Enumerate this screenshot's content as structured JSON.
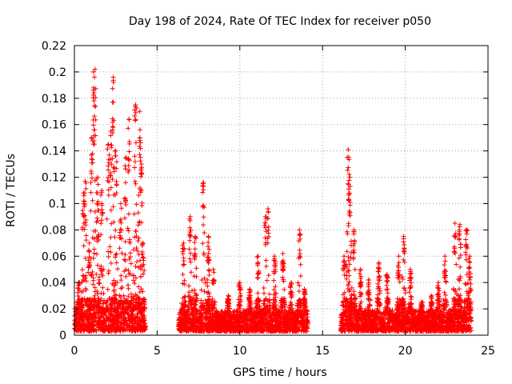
{
  "chart_data": {
    "type": "scatter",
    "title": "Day 198 of 2024, Rate Of TEC Index for receiver p050",
    "xlabel": "GPS time / hours",
    "ylabel": "ROTI / TECUs",
    "xlim": [
      0,
      25
    ],
    "ylim": [
      0,
      0.22
    ],
    "xticks": [
      0,
      5,
      10,
      15,
      20,
      25
    ],
    "xtick_labels": [
      "0",
      "5",
      "10",
      "15",
      "20",
      "25"
    ],
    "yticks": [
      0,
      0.02,
      0.04,
      0.06,
      0.08,
      0.1,
      0.12,
      0.14,
      0.16,
      0.18,
      0.2,
      0.22
    ],
    "ytick_labels": [
      "0",
      "0.02",
      "0.04",
      "0.06",
      "0.08",
      "0.1",
      "0.12",
      "0.14",
      "0.16",
      "0.18",
      "0.2",
      "0.22"
    ],
    "grid": true,
    "marker": "+",
    "color": "#ff0000",
    "segments": [
      {
        "start": 0.0,
        "end": 4.3,
        "baseline": 0.02,
        "spikes": [
          {
            "x": 0.25,
            "y": 0.04
          },
          {
            "x": 0.55,
            "y": 0.108
          },
          {
            "x": 0.65,
            "y": 0.117
          },
          {
            "x": 0.9,
            "y": 0.07
          },
          {
            "x": 1.05,
            "y": 0.15
          },
          {
            "x": 1.15,
            "y": 0.2
          },
          {
            "x": 1.25,
            "y": 0.202
          },
          {
            "x": 1.4,
            "y": 0.12
          },
          {
            "x": 1.65,
            "y": 0.11
          },
          {
            "x": 2.05,
            "y": 0.145
          },
          {
            "x": 2.2,
            "y": 0.155
          },
          {
            "x": 2.35,
            "y": 0.196
          },
          {
            "x": 2.5,
            "y": 0.14
          },
          {
            "x": 2.8,
            "y": 0.1
          },
          {
            "x": 3.1,
            "y": 0.135
          },
          {
            "x": 3.3,
            "y": 0.164
          },
          {
            "x": 3.7,
            "y": 0.175
          },
          {
            "x": 3.95,
            "y": 0.17
          },
          {
            "x": 4.05,
            "y": 0.13
          },
          {
            "x": 4.15,
            "y": 0.07
          }
        ]
      },
      {
        "start": 6.3,
        "end": 14.1,
        "baseline": 0.016,
        "spikes": [
          {
            "x": 6.6,
            "y": 0.07
          },
          {
            "x": 7.0,
            "y": 0.09
          },
          {
            "x": 7.3,
            "y": 0.075
          },
          {
            "x": 7.8,
            "y": 0.116
          },
          {
            "x": 8.1,
            "y": 0.075
          },
          {
            "x": 8.4,
            "y": 0.05
          },
          {
            "x": 9.3,
            "y": 0.03
          },
          {
            "x": 10.0,
            "y": 0.04
          },
          {
            "x": 10.6,
            "y": 0.035
          },
          {
            "x": 11.1,
            "y": 0.06
          },
          {
            "x": 11.55,
            "y": 0.09
          },
          {
            "x": 11.7,
            "y": 0.096
          },
          {
            "x": 12.1,
            "y": 0.06
          },
          {
            "x": 12.6,
            "y": 0.062
          },
          {
            "x": 13.1,
            "y": 0.04
          },
          {
            "x": 13.6,
            "y": 0.08
          },
          {
            "x": 13.9,
            "y": 0.035
          }
        ]
      },
      {
        "start": 16.1,
        "end": 24.0,
        "baseline": 0.016,
        "spikes": [
          {
            "x": 16.3,
            "y": 0.06
          },
          {
            "x": 16.55,
            "y": 0.141
          },
          {
            "x": 16.65,
            "y": 0.12
          },
          {
            "x": 16.9,
            "y": 0.08
          },
          {
            "x": 17.3,
            "y": 0.05
          },
          {
            "x": 17.8,
            "y": 0.042
          },
          {
            "x": 18.4,
            "y": 0.055
          },
          {
            "x": 18.9,
            "y": 0.046
          },
          {
            "x": 19.6,
            "y": 0.06
          },
          {
            "x": 19.9,
            "y": 0.075
          },
          {
            "x": 20.3,
            "y": 0.05
          },
          {
            "x": 21.0,
            "y": 0.025
          },
          {
            "x": 21.6,
            "y": 0.03
          },
          {
            "x": 22.0,
            "y": 0.04
          },
          {
            "x": 22.4,
            "y": 0.06
          },
          {
            "x": 23.0,
            "y": 0.085
          },
          {
            "x": 23.3,
            "y": 0.084
          },
          {
            "x": 23.7,
            "y": 0.08
          },
          {
            "x": 23.9,
            "y": 0.06
          }
        ]
      }
    ]
  }
}
